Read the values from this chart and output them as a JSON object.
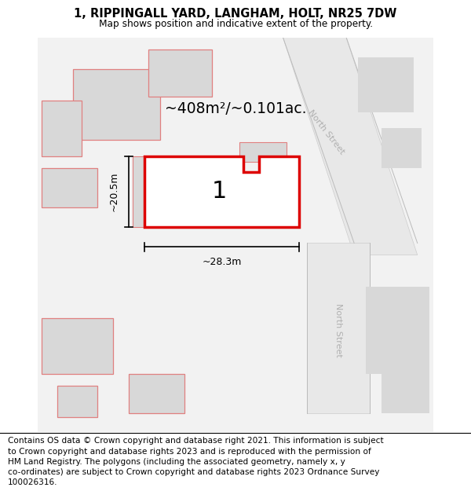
{
  "title_line1": "1, RIPPINGALL YARD, LANGHAM, HOLT, NR25 7DW",
  "title_line2": "Map shows position and indicative extent of the property.",
  "area_label": "~408m²/~0.101ac.",
  "plot_number": "1",
  "dim_width": "~28.3m",
  "dim_height": "~20.5m",
  "street_label": "North Street",
  "plot_edge_color": "#dd0000",
  "building_fill": "#d8d8d8",
  "building_edge_pink": "#e08080",
  "title_fontsize": 10.5,
  "footer_fontsize": 7.6,
  "footer_text": "Contains OS data © Crown copyright and database right 2021. This information is subject\nto Crown copyright and database rights 2023 and is reproduced with the permission of\nHM Land Registry. The polygons (including the associated geometry, namely x, y\nco-ordinates) are subject to Crown copyright and database rights 2023 Ordnance Survey\n100026316."
}
